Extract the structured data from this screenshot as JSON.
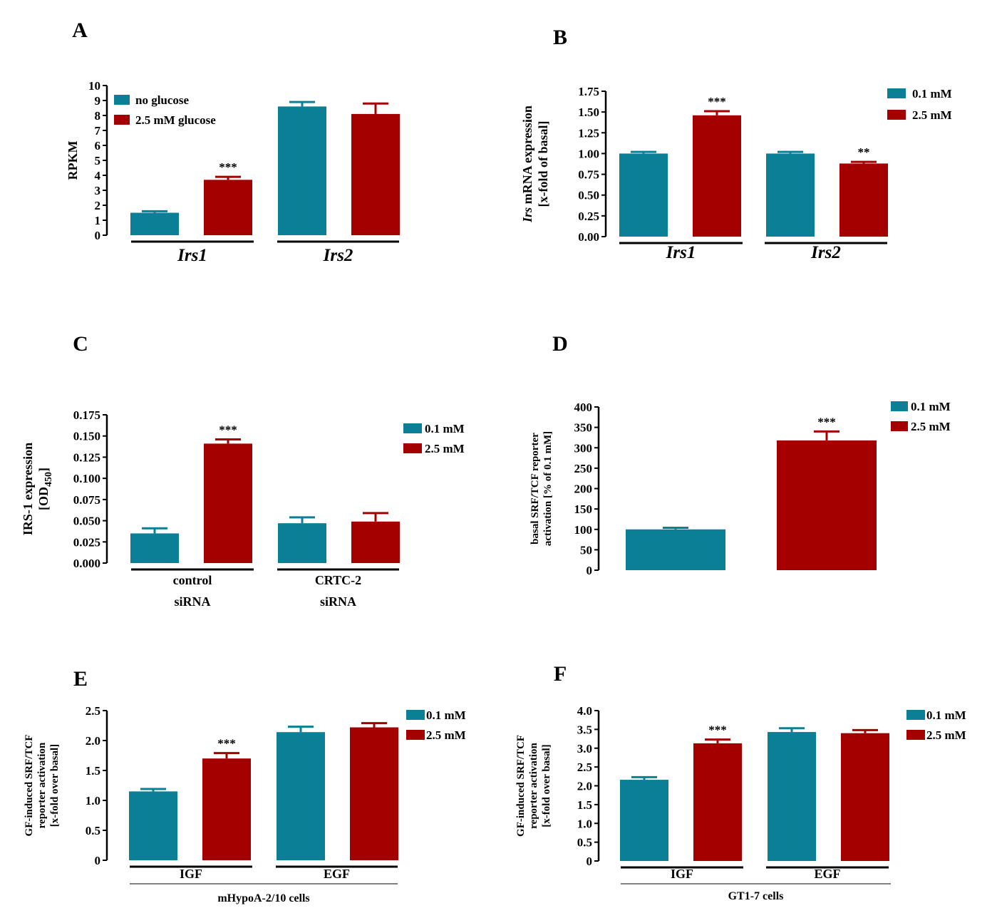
{
  "colors": {
    "teal": "#0a7f96",
    "red": "#a40000",
    "axis": "#000000"
  },
  "chart_data": [
    {
      "panel": "A",
      "type": "bar",
      "ylabel": "RPKM",
      "ylabel_italic_prefix": "",
      "ylabel_lines": [
        "RPKM"
      ],
      "ylim": [
        0,
        10
      ],
      "ticks": [
        "0",
        "1",
        "2",
        "3",
        "4",
        "5",
        "6",
        "7",
        "8",
        "9",
        "10"
      ],
      "tick_values": [
        0,
        1,
        2,
        3,
        4,
        5,
        6,
        7,
        8,
        9,
        10
      ],
      "groups": [
        "Irs1",
        "Irs2"
      ],
      "groups_italic": true,
      "footnote": "",
      "legend": [
        "no glucose",
        "2.5 mM glucose"
      ],
      "series": [
        {
          "name": "no glucose",
          "color": "#0a7f96",
          "values": [
            1.5,
            8.6
          ],
          "errors": [
            0.1,
            0.3
          ]
        },
        {
          "name": "2.5 mM glucose",
          "color": "#a40000",
          "values": [
            3.7,
            8.1
          ],
          "errors": [
            0.2,
            0.7
          ]
        }
      ],
      "significance": [
        "",
        "***",
        "",
        ""
      ]
    },
    {
      "panel": "B",
      "type": "bar",
      "ylabel_lines": [
        "Irs mRNA expression",
        "[x-fold of basal]"
      ],
      "ylim": [
        0,
        1.75
      ],
      "ticks": [
        "0.00",
        "0.25",
        "0.50",
        "0.75",
        "1.00",
        "1.25",
        "1.50",
        "1.75"
      ],
      "tick_values": [
        0,
        0.25,
        0.5,
        0.75,
        1.0,
        1.25,
        1.5,
        1.75
      ],
      "groups": [
        "Irs1",
        "Irs2"
      ],
      "groups_italic": true,
      "footnote": "",
      "legend": [
        "0.1 mM",
        "2.5 mM"
      ],
      "series": [
        {
          "name": "0.1 mM",
          "color": "#0a7f96",
          "values": [
            1.0,
            1.0
          ],
          "errors": [
            0.02,
            0.02
          ]
        },
        {
          "name": "2.5 mM",
          "color": "#a40000",
          "values": [
            1.46,
            0.88
          ],
          "errors": [
            0.05,
            0.02
          ]
        }
      ],
      "significance": [
        "",
        "***",
        "",
        "**"
      ]
    },
    {
      "panel": "C",
      "type": "bar",
      "ylabel_lines": [
        "IRS-1 expression",
        "[OD450]"
      ],
      "ylim": [
        0,
        0.175
      ],
      "ticks": [
        "0.000",
        "0.025",
        "0.050",
        "0.075",
        "0.100",
        "0.125",
        "0.150",
        "0.175"
      ],
      "tick_values": [
        0,
        0.025,
        0.05,
        0.075,
        0.1,
        0.125,
        0.15,
        0.175
      ],
      "groups": [
        "control\nsiRNA",
        "CRTC-2\nsiRNA"
      ],
      "groups_italic": false,
      "footnote": "",
      "legend": [
        "0.1 mM",
        "2.5 mM"
      ],
      "series": [
        {
          "name": "0.1 mM",
          "color": "#0a7f96",
          "values": [
            0.035,
            0.047
          ],
          "errors": [
            0.006,
            0.007
          ]
        },
        {
          "name": "2.5 mM",
          "color": "#a40000",
          "values": [
            0.141,
            0.049
          ],
          "errors": [
            0.005,
            0.01
          ]
        }
      ],
      "significance": [
        "",
        "***",
        "",
        ""
      ]
    },
    {
      "panel": "D",
      "type": "bar",
      "ylabel_lines": [
        "basal SRF/TCF reporter",
        "activation [% of 0.1 mM]"
      ],
      "ylim": [
        0,
        400
      ],
      "ticks": [
        "0",
        "50",
        "100",
        "150",
        "200",
        "250",
        "300",
        "350",
        "400"
      ],
      "tick_values": [
        0,
        50,
        100,
        150,
        200,
        250,
        300,
        350,
        400
      ],
      "groups": [],
      "groups_italic": false,
      "footnote": "",
      "legend": [
        "0.1 mM",
        "2.5 mM"
      ],
      "series": [
        {
          "name": "0.1 mM",
          "color": "#0a7f96",
          "values": [
            100
          ],
          "errors": [
            4
          ]
        },
        {
          "name": "2.5 mM",
          "color": "#a40000",
          "values": [
            318
          ],
          "errors": [
            22
          ]
        }
      ],
      "significance": [
        "",
        "***"
      ]
    },
    {
      "panel": "E",
      "type": "bar",
      "ylabel_lines": [
        "GF-induced SRF/TCF",
        "reporter activation",
        "[x-fold over basal]"
      ],
      "ylim": [
        0,
        2.5
      ],
      "ticks": [
        "0",
        "0.5",
        "1.0",
        "1.5",
        "2.0",
        "2.5"
      ],
      "tick_values": [
        0,
        0.5,
        1.0,
        1.5,
        2.0,
        2.5
      ],
      "groups": [
        "IGF",
        "EGF"
      ],
      "groups_italic": false,
      "footnote": "mHypoA-2/10 cells",
      "legend": [
        "0.1 mM",
        "2.5 mM"
      ],
      "series": [
        {
          "name": "0.1 mM",
          "color": "#0a7f96",
          "values": [
            1.15,
            2.14
          ],
          "errors": [
            0.04,
            0.09
          ]
        },
        {
          "name": "2.5 mM",
          "color": "#a40000",
          "values": [
            1.7,
            2.22
          ],
          "errors": [
            0.09,
            0.07
          ]
        }
      ],
      "significance": [
        "",
        "***",
        "",
        ""
      ]
    },
    {
      "panel": "F",
      "type": "bar",
      "ylabel_lines": [
        "GF-induced SRF/TCF",
        "reporter activation",
        "[x-fold over basal]"
      ],
      "ylim": [
        0,
        4.0
      ],
      "ticks": [
        "0",
        "0.5",
        "1.0",
        "1.5",
        "2.0",
        "2.5",
        "3.0",
        "3.5",
        "4.0"
      ],
      "tick_values": [
        0,
        0.5,
        1.0,
        1.5,
        2.0,
        2.5,
        3.0,
        3.5,
        4.0
      ],
      "groups": [
        "IGF",
        "EGF"
      ],
      "groups_italic": false,
      "footnote": "GT1-7 cells",
      "legend": [
        "0.1 mM",
        "2.5 mM"
      ],
      "series": [
        {
          "name": "0.1 mM",
          "color": "#0a7f96",
          "values": [
            2.16,
            3.43
          ],
          "errors": [
            0.07,
            0.1
          ]
        },
        {
          "name": "2.5 mM",
          "color": "#a40000",
          "values": [
            3.13,
            3.4
          ],
          "errors": [
            0.1,
            0.08
          ]
        }
      ],
      "significance": [
        "",
        "***",
        "",
        ""
      ]
    }
  ]
}
